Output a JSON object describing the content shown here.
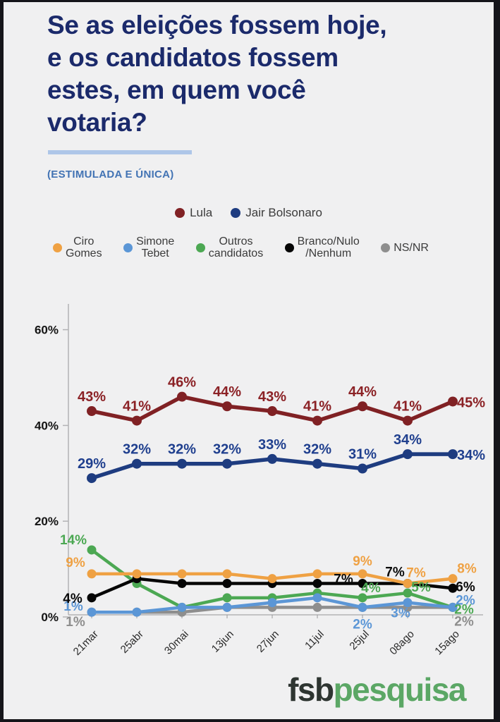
{
  "page": {
    "title_lines": [
      "Se as eleições fossem hoje,",
      "e os candidatos fossem",
      "estes, em quem você",
      "votaria?"
    ],
    "subtitle": "(ESTIMULADA E ÚNICA)",
    "logo": {
      "part1": "fsb",
      "part2": "pesquisa"
    },
    "colors": {
      "background": "#f0f0f1",
      "title": "#1b2a6b",
      "underline": "#aec6e8",
      "subtitle": "#4273b4",
      "axis": "#b3b3b5",
      "logo_dark": "#2e3531",
      "logo_green": "#5ba765"
    }
  },
  "legend": {
    "row1": [
      {
        "id": "lula",
        "label": "Lula",
        "color": "#802124"
      },
      {
        "id": "bolsonaro",
        "label": "Jair Bolsonaro",
        "color": "#1e3c80"
      }
    ],
    "row2": [
      {
        "id": "ciro",
        "lines": [
          "Ciro",
          "Gomes"
        ],
        "color": "#efa143"
      },
      {
        "id": "tebet",
        "lines": [
          "Simone",
          "Tebet"
        ],
        "color": "#5b96d6"
      },
      {
        "id": "outros",
        "lines": [
          "Outros",
          "candidatos"
        ],
        "color": "#4ca853"
      },
      {
        "id": "branco",
        "lines": [
          "Branco/Nulo",
          "/Nenhum"
        ],
        "color": "#050505"
      },
      {
        "id": "nsnr",
        "lines": [
          "NS/NR",
          ""
        ],
        "color": "#8e8e8e"
      }
    ]
  },
  "chart_data": {
    "type": "line",
    "title": "Se as eleições fossem hoje, e os candidatos fossem estes, em quem você votaria? (Estimulada e única)",
    "x_labels": [
      "21mar",
      "25abr",
      "30mai",
      "13jun",
      "27jun",
      "11jul",
      "25jul",
      "08ago",
      "15ago"
    ],
    "y_ticks": [
      {
        "value": 60,
        "label": "60%"
      },
      {
        "value": 40,
        "label": "40%"
      },
      {
        "value": 20,
        "label": "20%"
      },
      {
        "value": 0,
        "label": "0%"
      }
    ],
    "ylim": [
      0,
      65
    ],
    "grid": false,
    "legend_position": "top",
    "series": [
      {
        "id": "lula",
        "name": "Lula",
        "color": "#802124",
        "label_color": "#8b2125",
        "values": [
          43,
          41,
          46,
          44,
          43,
          41,
          44,
          41,
          45
        ],
        "labeled_indices": [
          0,
          1,
          2,
          3,
          4,
          5,
          6,
          7,
          8
        ]
      },
      {
        "id": "bolsonaro",
        "name": "Jair Bolsonaro",
        "color": "#1e3c80",
        "label_color": "#1f3f8e",
        "values": [
          29,
          32,
          32,
          32,
          33,
          32,
          31,
          34,
          34
        ],
        "labeled_indices": [
          0,
          1,
          2,
          3,
          4,
          5,
          6,
          7,
          8
        ]
      },
      {
        "id": "ciro",
        "name": "Ciro Gomes",
        "color": "#efa143",
        "label_color": "#efa143",
        "values": [
          9,
          9,
          9,
          9,
          8,
          9,
          9,
          7,
          8
        ],
        "labeled_indices": [
          0,
          6,
          7,
          8
        ]
      },
      {
        "id": "tebet",
        "name": "Simone Tebet",
        "color": "#5b96d6",
        "label_color": "#5b96d6",
        "values": [
          1,
          1,
          2,
          2,
          3,
          4,
          2,
          3,
          2
        ],
        "labeled_indices": [
          0,
          6,
          7,
          8
        ]
      },
      {
        "id": "outros",
        "name": "Outros candidatos",
        "color": "#4ca853",
        "label_color": "#4ca853",
        "values": [
          14,
          7,
          2,
          4,
          4,
          5,
          4,
          5,
          2
        ],
        "labeled_indices": [
          0,
          6,
          7,
          8
        ]
      },
      {
        "id": "branco",
        "name": "Branco/Nulo/Nenhum",
        "color": "#050505",
        "label_color": "#0a0a0a",
        "values": [
          4,
          8,
          7,
          7,
          7,
          7,
          7,
          7,
          6
        ],
        "labeled_indices": [
          0,
          6,
          7,
          8
        ]
      },
      {
        "id": "nsnr",
        "name": "NS/NR",
        "color": "#8e8e8e",
        "label_color": "#8e8e8e",
        "values": [
          1,
          1,
          1,
          2,
          2,
          2,
          2,
          2,
          2
        ],
        "labeled_indices": [
          0,
          8
        ]
      }
    ]
  }
}
